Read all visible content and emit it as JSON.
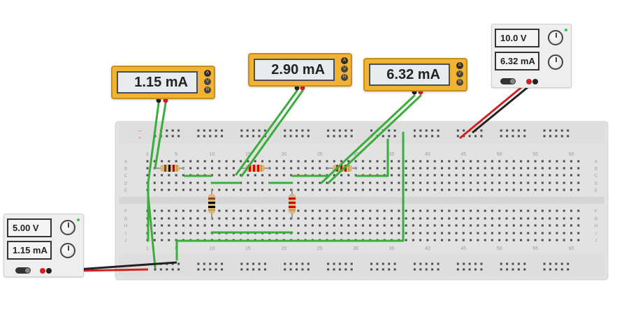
{
  "meters": [
    {
      "reading": "1.15 mA",
      "modes": [
        "A",
        "V",
        "R"
      ],
      "active_mode": "A"
    },
    {
      "reading": "2.90 mA",
      "modes": [
        "A",
        "V",
        "R"
      ],
      "active_mode": "A"
    },
    {
      "reading": "6.32 mA",
      "modes": [
        "A",
        "V",
        "R"
      ],
      "active_mode": "A"
    }
  ],
  "psu_left": {
    "voltage": "5.00 V",
    "current": "1.15 mA"
  },
  "psu_right": {
    "voltage": "10.0 V",
    "current": "6.32 mA"
  },
  "breadboard": {
    "top_numbers": [
      "1",
      "5",
      "10",
      "15",
      "20",
      "25",
      "30",
      "35",
      "40",
      "45",
      "50",
      "55",
      "60"
    ],
    "bottom_numbers": [
      "1",
      "5",
      "10",
      "15",
      "20",
      "25",
      "30",
      "35",
      "40",
      "45",
      "50",
      "55",
      "60"
    ],
    "row_letters_left": [
      "A",
      "B",
      "C",
      "D",
      "E",
      "F",
      "G",
      "H",
      "I",
      "J"
    ],
    "row_letters_right": [
      "A",
      "B",
      "C",
      "D",
      "E",
      "F",
      "G",
      "H",
      "I",
      "J"
    ],
    "rail_symbols": [
      "−",
      "+"
    ]
  },
  "colors": {
    "meter_body": "#f2b233",
    "wire_green": "#3aad3a",
    "wire_red": "#d42020",
    "wire_black": "#222222",
    "board": "#e3e3e3",
    "hole": "#4a4a4a"
  }
}
